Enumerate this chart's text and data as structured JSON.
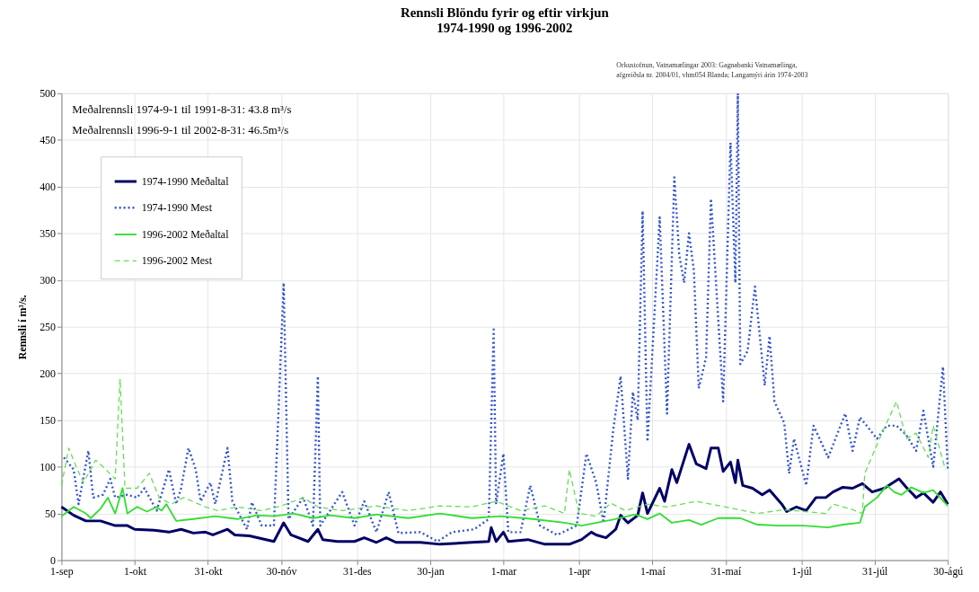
{
  "chart_data": {
    "type": "line",
    "title": "Rennsli Blöndu fyrir og eftir virkjun",
    "subtitle": "1974-1990 og 1996-2002",
    "ylabel": "Rennsli í m³/s.",
    "annotations": [
      "Meðalrennsli 1974-9-1 til 1991-8-31: 43.8 m³/s",
      "Meðalrennsli 1996-9-1 til 2002-8-31: 46.5m³/s",
      "Orkustofnun, Vatnamælingar 2003: Gagnabanki Vatnamælinga, afgreiðsla nr. 2004/01, vhm054 Blanda; Langamýri árin 1974-2003"
    ],
    "xlim": [
      "2001-09-01",
      "2002-08-30"
    ],
    "xticks": [
      {
        "value": "2001-09-01",
        "label": "1-sep"
      },
      {
        "value": "2001-10-01",
        "label": "1-okt"
      },
      {
        "value": "2001-10-31",
        "label": "31-okt"
      },
      {
        "value": "2001-11-30",
        "label": "30-nóv"
      },
      {
        "value": "2001-12-31",
        "label": "31-des"
      },
      {
        "value": "2002-01-30",
        "label": "30-jan"
      },
      {
        "value": "2002-03-01",
        "label": "1-mar"
      },
      {
        "value": "2002-04-01",
        "label": "1-apr"
      },
      {
        "value": "2002-05-01",
        "label": "1-maí"
      },
      {
        "value": "2002-05-31",
        "label": "31-maí"
      },
      {
        "value": "2002-07-01",
        "label": "1-júl"
      },
      {
        "value": "2002-07-31",
        "label": "31-júl"
      },
      {
        "value": "2002-08-30",
        "label": "30-ágú"
      }
    ],
    "ylim": [
      0,
      500
    ],
    "yticks": [
      0,
      50,
      100,
      150,
      200,
      250,
      300,
      350,
      400,
      450,
      500
    ],
    "grid": true,
    "legend": "top left",
    "series": [
      {
        "name": "1974-1990 Meðaltal",
        "color": "#000066",
        "line_style": "solid",
        "x": [
          "2001-09-01",
          "2001-09-06",
          "2001-09-11",
          "2001-09-17",
          "2001-09-23",
          "2001-09-28",
          "2001-10-01",
          "2001-10-09",
          "2001-10-15",
          "2001-10-20",
          "2001-10-25",
          "2001-10-30",
          "2001-11-02",
          "2001-11-08",
          "2001-11-11",
          "2001-11-17",
          "2001-11-27",
          "2001-12-01",
          "2001-12-04",
          "2001-12-11",
          "2001-12-15",
          "2001-12-17",
          "2001-12-23",
          "2001-12-30",
          "2002-01-03",
          "2002-01-08",
          "2002-01-12",
          "2002-01-16",
          "2002-01-26",
          "2002-02-03",
          "2002-02-16",
          "2002-02-23",
          "2002-02-24",
          "2002-02-26",
          "2002-03-01",
          "2002-03-03",
          "2002-03-11",
          "2002-03-18",
          "2002-03-28",
          "2002-04-02",
          "2002-04-06",
          "2002-04-08",
          "2002-04-12",
          "2002-04-16",
          "2002-04-18",
          "2002-04-21",
          "2002-04-25",
          "2002-04-27",
          "2002-04-29",
          "2002-05-04",
          "2002-05-06",
          "2002-05-09",
          "2002-05-11",
          "2002-05-16",
          "2002-05-19",
          "2002-05-23",
          "2002-05-25",
          "2002-05-28",
          "2002-05-30",
          "2002-06-02",
          "2002-06-04",
          "2002-06-05",
          "2002-06-07",
          "2002-06-11",
          "2002-06-15",
          "2002-06-18",
          "2002-06-23",
          "2002-06-25",
          "2002-06-29",
          "2002-07-03",
          "2002-07-07",
          "2002-07-11",
          "2002-07-14",
          "2002-07-18",
          "2002-07-22",
          "2002-07-26",
          "2002-07-30",
          "2002-08-04",
          "2002-08-07",
          "2002-08-10",
          "2002-08-13",
          "2002-08-17",
          "2002-08-20",
          "2002-08-24",
          "2002-08-27",
          "2002-08-30"
        ],
        "values": [
          57,
          48,
          42,
          42,
          37,
          37,
          33,
          32,
          30,
          33,
          29,
          30,
          27,
          33,
          27,
          26,
          20,
          40,
          27,
          20,
          33,
          22,
          20,
          20,
          24,
          19,
          24,
          19,
          19,
          17,
          19,
          20,
          35,
          20,
          30,
          20,
          22,
          17,
          17,
          22,
          30,
          27,
          24,
          33,
          48,
          40,
          48,
          72,
          50,
          77,
          63,
          97,
          83,
          124,
          103,
          98,
          120,
          120,
          95,
          105,
          83,
          107,
          80,
          77,
          70,
          75,
          60,
          52,
          57,
          53,
          67,
          67,
          73,
          78,
          77,
          82,
          73,
          77,
          82,
          87,
          78,
          67,
          72,
          62,
          73,
          60
        ]
      },
      {
        "name": "1974-1990 Mest",
        "color": "#3355cc",
        "line_style": "dotted",
        "x": [
          "2001-09-02",
          "2001-09-06",
          "2001-09-08",
          "2001-09-12",
          "2001-09-14",
          "2001-09-18",
          "2001-09-21",
          "2001-09-23",
          "2001-09-28",
          "2001-10-02",
          "2001-10-05",
          "2001-10-10",
          "2001-10-15",
          "2001-10-18",
          "2001-10-20",
          "2001-10-23",
          "2001-10-26",
          "2001-10-28",
          "2001-11-01",
          "2001-11-03",
          "2001-11-08",
          "2001-11-10",
          "2001-11-16",
          "2001-11-18",
          "2001-11-22",
          "2001-11-27",
          "2001-12-01",
          "2001-12-03",
          "2001-12-09",
          "2001-12-13",
          "2001-12-15",
          "2001-12-16",
          "2001-12-25",
          "2001-12-30",
          "2002-01-03",
          "2002-01-08",
          "2002-01-13",
          "2002-01-17",
          "2002-01-26",
          "2002-02-02",
          "2002-02-08",
          "2002-02-17",
          "2002-02-23",
          "2002-02-25",
          "2002-02-26",
          "2002-03-01",
          "2002-03-03",
          "2002-03-08",
          "2002-03-12",
          "2002-03-16",
          "2002-03-23",
          "2002-03-31",
          "2002-04-04",
          "2002-04-08",
          "2002-04-11",
          "2002-04-15",
          "2002-04-18",
          "2002-04-21",
          "2002-04-23",
          "2002-04-25",
          "2002-04-27",
          "2002-04-29",
          "2002-05-04",
          "2002-05-07",
          "2002-05-10",
          "2002-05-12",
          "2002-05-14",
          "2002-05-16",
          "2002-05-18",
          "2002-05-20",
          "2002-05-23",
          "2002-05-25",
          "2002-05-30",
          "2002-06-02",
          "2002-06-04",
          "2002-06-05",
          "2002-06-06",
          "2002-06-09",
          "2002-06-12",
          "2002-06-16",
          "2002-06-18",
          "2002-06-20",
          "2002-06-24",
          "2002-06-26",
          "2002-06-28",
          "2002-07-03",
          "2002-07-06",
          "2002-07-12",
          "2002-07-19",
          "2002-07-22",
          "2002-07-25",
          "2002-08-01",
          "2002-08-05",
          "2002-08-09",
          "2002-08-13",
          "2002-08-17",
          "2002-08-20",
          "2002-08-24",
          "2002-08-28",
          "2002-08-30"
        ],
        "values": [
          110,
          97,
          60,
          117,
          67,
          70,
          87,
          67,
          70,
          67,
          77,
          53,
          97,
          60,
          77,
          120,
          97,
          63,
          83,
          60,
          120,
          63,
          33,
          62,
          37,
          37,
          297,
          44,
          67,
          37,
          197,
          37,
          73,
          37,
          63,
          30,
          73,
          29,
          30,
          20,
          30,
          33,
          44,
          247,
          60,
          114,
          30,
          30,
          80,
          37,
          27,
          37,
          114,
          83,
          40,
          140,
          197,
          87,
          180,
          150,
          374,
          127,
          367,
          157,
          410,
          327,
          297,
          350,
          310,
          184,
          217,
          387,
          170,
          447,
          297,
          500,
          210,
          224,
          293,
          187,
          240,
          170,
          147,
          93,
          130,
          80,
          144,
          110,
          157,
          117,
          153,
          130,
          144,
          144,
          134,
          117,
          160,
          100,
          207,
          97
        ]
      },
      {
        "name": "1996-2002 Meðaltal",
        "color": "#33dd33",
        "line_style": "solid",
        "x": [
          "2001-09-01",
          "2001-09-06",
          "2001-09-11",
          "2001-09-13",
          "2001-09-17",
          "2001-09-20",
          "2001-09-23",
          "2001-09-26",
          "2001-09-28",
          "2001-10-02",
          "2001-10-06",
          "2001-10-10",
          "2001-10-12",
          "2001-10-14",
          "2001-10-18",
          "2001-10-25",
          "2001-11-03",
          "2001-11-12",
          "2001-11-20",
          "2001-11-27",
          "2001-12-05",
          "2001-12-13",
          "2001-12-20",
          "2001-12-30",
          "2002-01-08",
          "2002-01-21",
          "2002-02-03",
          "2002-02-16",
          "2002-02-28",
          "2002-03-13",
          "2002-03-26",
          "2002-04-02",
          "2002-04-14",
          "2002-04-24",
          "2002-04-29",
          "2002-05-04",
          "2002-05-09",
          "2002-05-16",
          "2002-05-21",
          "2002-05-28",
          "2002-06-06",
          "2002-06-13",
          "2002-06-22",
          "2002-07-02",
          "2002-07-12",
          "2002-07-18",
          "2002-07-25",
          "2002-07-27",
          "2002-08-01",
          "2002-08-05",
          "2002-08-08",
          "2002-08-11",
          "2002-08-15",
          "2002-08-20",
          "2002-08-24",
          "2002-08-30"
        ],
        "values": [
          47,
          57,
          50,
          45,
          55,
          67,
          50,
          77,
          50,
          57,
          52,
          57,
          53,
          60,
          42,
          44,
          47,
          44,
          48,
          47,
          50,
          45,
          48,
          45,
          49,
          45,
          50,
          45,
          47,
          44,
          40,
          37,
          43,
          49,
          44,
          50,
          40,
          43,
          38,
          45,
          45,
          38,
          37,
          37,
          35,
          38,
          40,
          57,
          67,
          80,
          73,
          70,
          78,
          72,
          75,
          58
        ]
      },
      {
        "name": "1996-2002 Mest",
        "color": "#66dd55",
        "line_style": "dashed",
        "x": [
          "2001-09-01",
          "2001-09-04",
          "2001-09-07",
          "2001-09-10",
          "2001-09-15",
          "2001-09-18",
          "2001-09-23",
          "2001-09-25",
          "2001-09-27",
          "2001-10-02",
          "2001-10-07",
          "2001-10-11",
          "2001-10-16",
          "2001-10-21",
          "2001-10-30",
          "2001-11-04",
          "2001-11-12",
          "2001-11-22",
          "2001-11-30",
          "2001-12-09",
          "2001-12-15",
          "2001-12-25",
          "2002-01-08",
          "2002-01-21",
          "2002-02-03",
          "2002-02-16",
          "2002-02-26",
          "2002-03-08",
          "2002-03-18",
          "2002-03-26",
          "2002-03-28",
          "2002-04-01",
          "2002-04-08",
          "2002-04-14",
          "2002-04-20",
          "2002-04-29",
          "2002-05-07",
          "2002-05-19",
          "2002-05-31",
          "2002-06-13",
          "2002-06-24",
          "2002-07-11",
          "2002-07-14",
          "2002-07-21",
          "2002-07-26",
          "2002-07-27",
          "2002-08-03",
          "2002-08-09",
          "2002-08-13",
          "2002-08-17",
          "2002-08-22",
          "2002-08-24",
          "2002-08-29"
        ],
        "values": [
          80,
          120,
          100,
          83,
          107,
          100,
          87,
          194,
          77,
          77,
          93,
          67,
          60,
          67,
          57,
          53,
          57,
          53,
          58,
          67,
          57,
          53,
          58,
          53,
          58,
          57,
          63,
          53,
          58,
          50,
          97,
          50,
          47,
          61,
          53,
          60,
          57,
          63,
          57,
          50,
          54,
          50,
          60,
          55,
          50,
          93,
          136,
          170,
          130,
          136,
          110,
          144,
          97
        ]
      }
    ]
  }
}
